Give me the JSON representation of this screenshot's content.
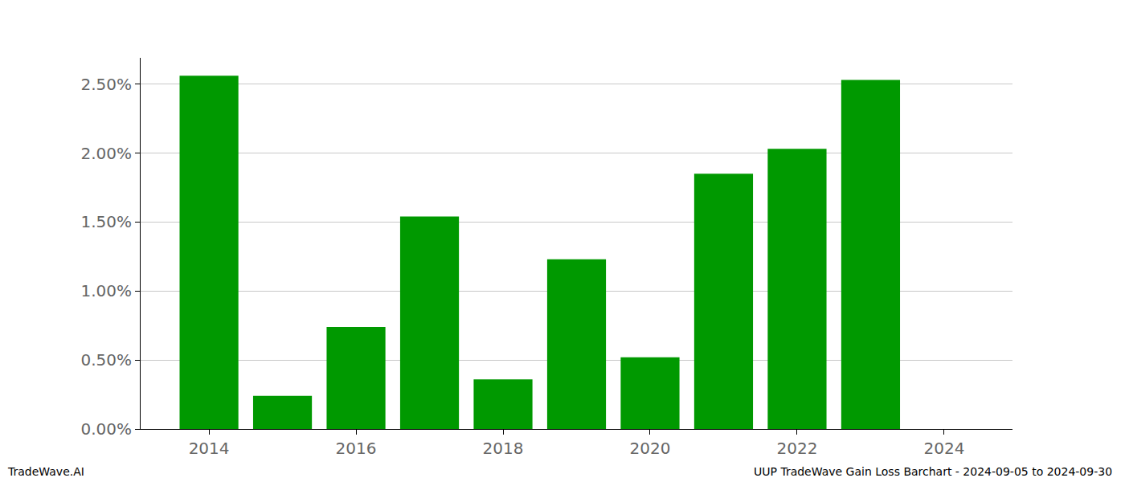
{
  "chart_data": {
    "type": "bar",
    "x": [
      2014,
      2015,
      2016,
      2017,
      2018,
      2019,
      2020,
      2021,
      2022,
      2023
    ],
    "values": [
      2.56,
      0.24,
      0.74,
      1.54,
      0.36,
      1.23,
      0.52,
      1.85,
      2.03,
      2.53
    ],
    "color": "#009900",
    "xlim": [
      2013.07,
      2024.93
    ],
    "xticks": [
      2014,
      2016,
      2018,
      2020,
      2022,
      2024
    ],
    "ylim": [
      0,
      2.69
    ],
    "yticks": [
      {
        "value": 0,
        "label": "0.00%"
      },
      {
        "value": 0.5,
        "label": "0.50%"
      },
      {
        "value": 1,
        "label": "1.00%"
      },
      {
        "value": 1.5,
        "label": "1.50%"
      },
      {
        "value": 2,
        "label": "2.00%"
      },
      {
        "value": 2.5,
        "label": "2.50%"
      }
    ],
    "grid": true,
    "annotations": [
      "TradeWave.AI",
      "UUP TradeWave Gain Loss Barchart - 2024-09-05 to 2024-09-30"
    ]
  }
}
